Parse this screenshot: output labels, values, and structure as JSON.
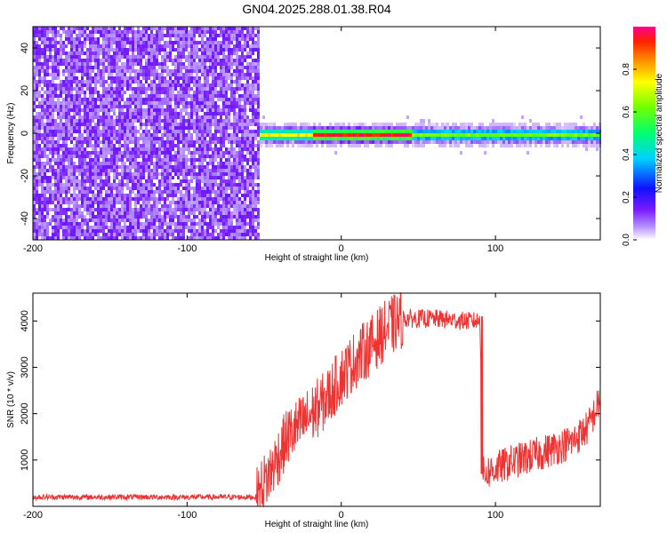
{
  "title": "GN04.2025.288.01.38.R04",
  "colors": {
    "snr_line": "#ee3333",
    "spectro_noise_dark": "#6a1aff",
    "spectro_noise_light": "#d9c6ff"
  },
  "chart_data": [
    {
      "type": "heatmap",
      "name": "spectrogram",
      "xlabel": "Height of straight line (km)",
      "ylabel": "Frequency (Hz)",
      "xlim": [
        -200,
        168
      ],
      "ylim": [
        -50,
        50
      ],
      "xticks": [
        "-200",
        "-100",
        "0",
        "100"
      ],
      "xtick_values": [
        -200,
        -100,
        0,
        100
      ],
      "yticks": [
        "-40",
        "-20",
        "0",
        "20",
        "40"
      ],
      "ytick_values": [
        -40,
        -20,
        0,
        20,
        40
      ],
      "colorbar": {
        "label": "Normalized spectral amplitude",
        "range": [
          0,
          1
        ],
        "ticks": [
          "0.0",
          "0.2",
          "0.4",
          "0.6",
          "0.8"
        ],
        "tick_values": [
          0.0,
          0.2,
          0.4,
          0.6,
          0.8
        ]
      },
      "noise_region_x": [
        -200,
        -54
      ],
      "signal_band": {
        "x_start": -54,
        "x_end": 168,
        "center_freq": 0,
        "halfwidth_hz": 4,
        "peak_region_x": [
          -20,
          45
        ]
      },
      "grid": false
    },
    {
      "type": "line",
      "name": "snr",
      "xlabel": "Height of straight line (km)",
      "ylabel": "SNR (10 * v/v)",
      "xlim": [
        -200,
        168
      ],
      "ylim": [
        0,
        4600
      ],
      "xticks": [
        "-200",
        "-100",
        "0",
        "100"
      ],
      "xtick_values": [
        -200,
        -100,
        0,
        100
      ],
      "yticks": [
        "1000",
        "2000",
        "3000",
        "4000"
      ],
      "ytick_values": [
        1000,
        2000,
        3000,
        4000
      ],
      "trend": [
        {
          "x": -200,
          "y": 200
        },
        {
          "x": -55,
          "y": 200
        },
        {
          "x": -45,
          "y": 800
        },
        {
          "x": -35,
          "y": 1500
        },
        {
          "x": -25,
          "y": 1800
        },
        {
          "x": -10,
          "y": 2300
        },
        {
          "x": 0,
          "y": 2800
        },
        {
          "x": 10,
          "y": 3200
        },
        {
          "x": 20,
          "y": 3500
        },
        {
          "x": 30,
          "y": 3850
        },
        {
          "x": 40,
          "y": 4050
        },
        {
          "x": 60,
          "y": 4050
        },
        {
          "x": 80,
          "y": 4000
        },
        {
          "x": 90,
          "y": 4000
        },
        {
          "x": 92,
          "y": 700
        },
        {
          "x": 110,
          "y": 950
        },
        {
          "x": 130,
          "y": 1150
        },
        {
          "x": 150,
          "y": 1400
        },
        {
          "x": 160,
          "y": 1700
        },
        {
          "x": 168,
          "y": 2300
        }
      ],
      "grid": false
    }
  ]
}
